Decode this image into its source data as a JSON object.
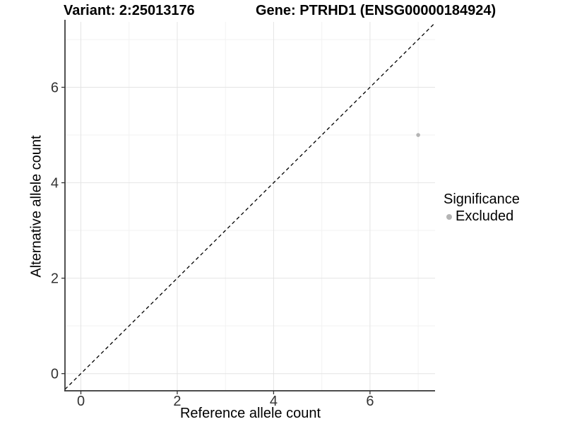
{
  "header": {
    "variant_title": "Variant: 2:25013176",
    "gene_title": "Gene: PTRHD1 (ENSG00000184924)"
  },
  "axes": {
    "x_label": "Reference allele count",
    "y_label": "Alternative allele count"
  },
  "legend": {
    "title": "Significance",
    "items": [
      {
        "label": "Excluded",
        "color": "#b4b4b4"
      }
    ]
  },
  "colors": {
    "background": "#ffffff",
    "axis_line": "#333333",
    "tick_label": "#333333",
    "grid_major": "#e4e4e4",
    "grid_minor": "#f2f2f2",
    "reference_line": "#000000",
    "point_excluded": "#b4b4b4"
  },
  "chart_data": {
    "type": "scatter",
    "title": "Variant: 2:25013176 — Gene: PTRHD1 (ENSG00000184924)",
    "xlabel": "Reference allele count",
    "ylabel": "Alternative allele count",
    "xlim": [
      -0.33,
      7.35
    ],
    "ylim": [
      -0.36,
      7.37
    ],
    "x_ticks": [
      0,
      2,
      4,
      6
    ],
    "y_ticks": [
      0,
      2,
      4,
      6
    ],
    "x_minor_ticks": [
      1,
      3,
      5,
      7
    ],
    "y_minor_ticks": [
      1,
      3,
      5,
      7
    ],
    "grid": true,
    "legend_position": "right",
    "series": [
      {
        "name": "Excluded",
        "color": "#b4b4b4",
        "points": [
          {
            "x": 7,
            "y": 5
          }
        ]
      }
    ],
    "reference_line": {
      "type": "identity",
      "style": "dashed",
      "color": "#000000"
    }
  }
}
